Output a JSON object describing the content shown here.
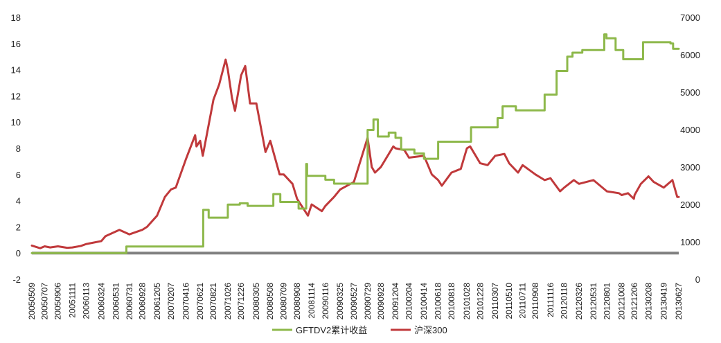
{
  "chart_data": {
    "type": "line",
    "title": "",
    "xlabel": "",
    "ylabel": "",
    "y_left": {
      "min": -2,
      "max": 18,
      "ticks": [
        -2,
        0,
        2,
        4,
        6,
        8,
        10,
        12,
        14,
        16,
        18
      ]
    },
    "y_right": {
      "min": 0,
      "max": 7000,
      "ticks": [
        0,
        1000,
        2000,
        3000,
        4000,
        5000,
        6000,
        7000
      ]
    },
    "grid": false,
    "zero_line": {
      "value": 0,
      "color": "#808080"
    },
    "legend_position": "bottom",
    "x_tick_labels": [
      "20050509",
      "20050707",
      "20050906",
      "20051111",
      "20060113",
      "20060324",
      "20060531",
      "20060731",
      "20060928",
      "20061205",
      "20070207",
      "20070416",
      "20070621",
      "20070821",
      "20071026",
      "20071226",
      "20080305",
      "20080508",
      "20080709",
      "20080908",
      "20081114",
      "20090116",
      "20090325",
      "20090527",
      "20090729",
      "20090928",
      "20091204",
      "20100204",
      "20100414",
      "20100618",
      "20100818",
      "20101028",
      "20101228",
      "20110307",
      "20110510",
      "20110711",
      "20110908",
      "20111116",
      "20120118",
      "20120326",
      "20120531",
      "20120801",
      "20121008",
      "20121206",
      "20130208",
      "20130419",
      "20130627"
    ],
    "series": [
      {
        "name": "GFTDV2累计收益",
        "axis": "left",
        "color": "#8DB84A",
        "step": true,
        "points": [
          [
            "20050509",
            0.0
          ],
          [
            "20060717",
            0.0
          ],
          [
            "20060717",
            0.5
          ],
          [
            "20070705",
            0.5
          ],
          [
            "20070705",
            3.3
          ],
          [
            "20070730",
            3.3
          ],
          [
            "20070730",
            2.7
          ],
          [
            "20071026",
            2.7
          ],
          [
            "20071026",
            3.7
          ],
          [
            "20071220",
            3.7
          ],
          [
            "20071220",
            3.8
          ],
          [
            "20080125",
            3.8
          ],
          [
            "20080125",
            3.6
          ],
          [
            "20080522",
            3.6
          ],
          [
            "20080522",
            4.5
          ],
          [
            "20080623",
            4.5
          ],
          [
            "20080623",
            3.9
          ],
          [
            "20080915",
            3.9
          ],
          [
            "20080915",
            3.4
          ],
          [
            "20081020",
            3.4
          ],
          [
            "20081020",
            6.8
          ],
          [
            "20081024",
            6.8
          ],
          [
            "20081024",
            5.9
          ],
          [
            "20090116",
            5.9
          ],
          [
            "20090116",
            5.6
          ],
          [
            "20090225",
            5.6
          ],
          [
            "20090225",
            5.3
          ],
          [
            "20090729",
            5.3
          ],
          [
            "20090729",
            9.4
          ],
          [
            "20090825",
            9.4
          ],
          [
            "20090825",
            10.2
          ],
          [
            "20090914",
            10.2
          ],
          [
            "20090914",
            8.9
          ],
          [
            "20091103",
            8.9
          ],
          [
            "20091103",
            9.2
          ],
          [
            "20091204",
            9.2
          ],
          [
            "20091204",
            8.8
          ],
          [
            "20091230",
            8.8
          ],
          [
            "20091230",
            7.9
          ],
          [
            "20100301",
            7.9
          ],
          [
            "20100301",
            7.6
          ],
          [
            "20100414",
            7.6
          ],
          [
            "20100414",
            7.2
          ],
          [
            "20100618",
            7.2
          ],
          [
            "20100618",
            8.5
          ],
          [
            "20101116",
            8.5
          ],
          [
            "20101116",
            9.6
          ],
          [
            "20110318",
            9.6
          ],
          [
            "20110318",
            10.3
          ],
          [
            "20110410",
            10.3
          ],
          [
            "20110410",
            11.2
          ],
          [
            "20110610",
            11.2
          ],
          [
            "20110610",
            10.9
          ],
          [
            "20111020",
            10.9
          ],
          [
            "20111020",
            12.1
          ],
          [
            "20111214",
            12.1
          ],
          [
            "20111214",
            13.9
          ],
          [
            "20120201",
            13.9
          ],
          [
            "20120201",
            15.0
          ],
          [
            "20120225",
            15.0
          ],
          [
            "20120225",
            15.3
          ],
          [
            "20120410",
            15.3
          ],
          [
            "20120410",
            15.5
          ],
          [
            "20120720",
            15.5
          ],
          [
            "20120720",
            16.7
          ],
          [
            "20120730",
            16.7
          ],
          [
            "20120730",
            16.4
          ],
          [
            "20120910",
            16.4
          ],
          [
            "20120910",
            15.5
          ],
          [
            "20121015",
            15.5
          ],
          [
            "20121015",
            14.8
          ],
          [
            "20130114",
            14.8
          ],
          [
            "20130114",
            16.1
          ],
          [
            "20130520",
            16.1
          ],
          [
            "20130520",
            16.0
          ],
          [
            "20130601",
            16.0
          ],
          [
            "20130601",
            15.6
          ],
          [
            "20130627",
            15.6
          ]
        ]
      },
      {
        "name": "沪深300",
        "axis": "right",
        "color": "#C0393B",
        "step": false,
        "points": [
          [
            "20050509",
            900
          ],
          [
            "20050616",
            830
          ],
          [
            "20050707",
            880
          ],
          [
            "20050801",
            850
          ],
          [
            "20050906",
            880
          ],
          [
            "20051018",
            840
          ],
          [
            "20051111",
            850
          ],
          [
            "20051220",
            890
          ],
          [
            "20060113",
            940
          ],
          [
            "20060324",
            1020
          ],
          [
            "20060412",
            1150
          ],
          [
            "20060531",
            1280
          ],
          [
            "20060615",
            1320
          ],
          [
            "20060731",
            1200
          ],
          [
            "20060928",
            1320
          ],
          [
            "20061020",
            1400
          ],
          [
            "20061205",
            1700
          ],
          [
            "20070110",
            2200
          ],
          [
            "20070207",
            2400
          ],
          [
            "20070301",
            2450
          ],
          [
            "20070416",
            3200
          ],
          [
            "20070529",
            3850
          ],
          [
            "20070604",
            3550
          ],
          [
            "20070621",
            3700
          ],
          [
            "20070703",
            3300
          ],
          [
            "20070821",
            4800
          ],
          [
            "20070916",
            5200
          ],
          [
            "20071016",
            5870
          ],
          [
            "20071026",
            5600
          ],
          [
            "20071114",
            4850
          ],
          [
            "20071128",
            4500
          ],
          [
            "20071226",
            5450
          ],
          [
            "20080114",
            5700
          ],
          [
            "20080205",
            4700
          ],
          [
            "20080305",
            4700
          ],
          [
            "20080416",
            3400
          ],
          [
            "20080508",
            3700
          ],
          [
            "20080620",
            2800
          ],
          [
            "20080709",
            2800
          ],
          [
            "20080818",
            2550
          ],
          [
            "20080908",
            2150
          ],
          [
            "20081028",
            1700
          ],
          [
            "20081114",
            2000
          ],
          [
            "20081231",
            1820
          ],
          [
            "20090116",
            1960
          ],
          [
            "20090225",
            2200
          ],
          [
            "20090325",
            2400
          ],
          [
            "20090527",
            2600
          ],
          [
            "20090729",
            3780
          ],
          [
            "20090817",
            3000
          ],
          [
            "20090901",
            2850
          ],
          [
            "20090928",
            3000
          ],
          [
            "20091124",
            3550
          ],
          [
            "20091204",
            3500
          ],
          [
            "20100114",
            3450
          ],
          [
            "20100204",
            3250
          ],
          [
            "20100414",
            3300
          ],
          [
            "20100520",
            2800
          ],
          [
            "20100618",
            2650
          ],
          [
            "20100705",
            2500
          ],
          [
            "20100818",
            2850
          ],
          [
            "20100930",
            2950
          ],
          [
            "20101028",
            3500
          ],
          [
            "20101112",
            3550
          ],
          [
            "20101228",
            3100
          ],
          [
            "20110131",
            3050
          ],
          [
            "20110307",
            3300
          ],
          [
            "20110418",
            3350
          ],
          [
            "20110510",
            3100
          ],
          [
            "20110620",
            2850
          ],
          [
            "20110711",
            3050
          ],
          [
            "20110908",
            2800
          ],
          [
            "20111020",
            2650
          ],
          [
            "20111116",
            2700
          ],
          [
            "20111230",
            2350
          ],
          [
            "20120118",
            2450
          ],
          [
            "20120302",
            2650
          ],
          [
            "20120326",
            2550
          ],
          [
            "20120531",
            2650
          ],
          [
            "20120801",
            2350
          ],
          [
            "20120925",
            2300
          ],
          [
            "20121008",
            2250
          ],
          [
            "20121106",
            2300
          ],
          [
            "20121203",
            2150
          ],
          [
            "20121206",
            2250
          ],
          [
            "20130104",
            2550
          ],
          [
            "20130208",
            2750
          ],
          [
            "20130304",
            2600
          ],
          [
            "20130419",
            2450
          ],
          [
            "20130529",
            2650
          ],
          [
            "20130620",
            2200
          ],
          [
            "20130627",
            2200
          ]
        ]
      }
    ]
  }
}
